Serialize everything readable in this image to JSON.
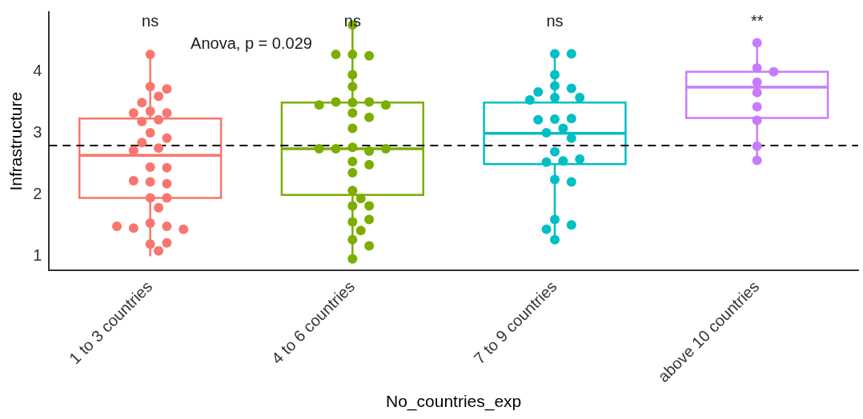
{
  "chart_data": {
    "type": "box",
    "xlabel": "No_countries_exp",
    "ylabel": "Infrastructure",
    "categories": [
      "1 to 3 countries",
      "4 to 6 countries",
      "7 to 9 countries",
      "above 10 countries"
    ],
    "colors": [
      "#f8766d",
      "#7cae00",
      "#00bfc4",
      "#c77cff"
    ],
    "boxes": [
      {
        "low": 1.0,
        "q1": 1.95,
        "median": 2.64,
        "q3": 3.24,
        "high": 4.25
      },
      {
        "low": 1.0,
        "q1": 2.0,
        "median": 2.75,
        "q3": 3.5,
        "high": 4.75
      },
      {
        "low": 1.25,
        "q1": 2.5,
        "median": 3.0,
        "q3": 3.5,
        "high": 4.25
      },
      {
        "low": 2.5,
        "q1": 3.25,
        "median": 3.75,
        "q3": 4.0,
        "high": 4.5
      }
    ],
    "series": [
      {
        "type": "scatter",
        "color": "#f8766d",
        "x": [
          "1 to 3 countries",
          "1 to 3 countries",
          "1 to 3 countries",
          "1 to 3 countries",
          "1 to 3 countries",
          "1 to 3 countries",
          "1 to 3 countries",
          "1 to 3 countries",
          "1 to 3 countries",
          "1 to 3 countries",
          "1 to 3 countries",
          "1 to 3 countries",
          "1 to 3 countries",
          "1 to 3 countries",
          "1 to 3 countries",
          "1 to 3 countries",
          "1 to 3 countries",
          "1 to 3 countries",
          "1 to 3 countries",
          "1 to 3 countries",
          "1 to 3 countries",
          "1 to 3 countries",
          "1 to 3 countries",
          "1 to 3 countries",
          "1 to 3 countries",
          "1 to 3 countries",
          "1 to 3 countries",
          "1 to 3 countries",
          "1 to 3 countries",
          "1 to 3 countries",
          "1 to 3 countries"
        ],
        "values": [
          4.28,
          3.76,
          3.72,
          3.6,
          3.5,
          3.36,
          3.33,
          3.33,
          3.22,
          3.19,
          3.01,
          2.92,
          2.85,
          2.76,
          2.72,
          2.45,
          2.44,
          2.21,
          2.18,
          2.23,
          1.95,
          1.95,
          1.79,
          1.54,
          1.49,
          1.46,
          1.44,
          1.49,
          1.2,
          1.22,
          1.09
        ]
      },
      {
        "type": "scatter",
        "color": "#7cae00",
        "x": [
          "4 to 6 countries",
          "4 to 6 countries",
          "4 to 6 countries",
          "4 to 6 countries",
          "4 to 6 countries",
          "4 to 6 countries",
          "4 to 6 countries",
          "4 to 6 countries",
          "4 to 6 countries",
          "4 to 6 countries",
          "4 to 6 countries",
          "4 to 6 countries",
          "4 to 6 countries",
          "4 to 6 countries",
          "4 to 6 countries",
          "4 to 6 countries",
          "4 to 6 countries",
          "4 to 6 countries",
          "4 to 6 countries",
          "4 to 6 countries",
          "4 to 6 countries",
          "4 to 6 countries",
          "4 to 6 countries",
          "4 to 6 countries",
          "4 to 6 countries",
          "4 to 6 countries",
          "4 to 6 countries",
          "4 to 6 countries",
          "4 to 6 countries",
          "4 to 6 countries",
          "4 to 6 countries",
          "4 to 6 countries"
        ],
        "values": [
          4.76,
          4.28,
          4.26,
          4.28,
          3.95,
          3.76,
          3.5,
          3.51,
          3.51,
          3.46,
          3.46,
          3.33,
          3.26,
          3.08,
          2.77,
          2.71,
          2.75,
          2.75,
          2.75,
          2.54,
          2.49,
          2.36,
          2.07,
          1.94,
          1.82,
          1.82,
          1.56,
          1.6,
          1.42,
          1.27,
          1.17,
          0.96
        ]
      },
      {
        "type": "scatter",
        "color": "#00bfc4",
        "x": [
          "7 to 9 countries",
          "7 to 9 countries",
          "7 to 9 countries",
          "7 to 9 countries",
          "7 to 9 countries",
          "7 to 9 countries",
          "7 to 9 countries",
          "7 to 9 countries",
          "7 to 9 countries",
          "7 to 9 countries",
          "7 to 9 countries",
          "7 to 9 countries",
          "7 to 9 countries",
          "7 to 9 countries",
          "7 to 9 countries",
          "7 to 9 countries",
          "7 to 9 countries",
          "7 to 9 countries",
          "7 to 9 countries",
          "7 to 9 countries",
          "7 to 9 countries",
          "7 to 9 countries",
          "7 to 9 countries",
          "7 to 9 countries",
          "7 to 9 countries"
        ],
        "values": [
          4.29,
          4.29,
          3.95,
          3.77,
          3.73,
          3.67,
          3.58,
          3.58,
          3.54,
          3.23,
          3.24,
          3.22,
          3.08,
          3.01,
          2.92,
          2.7,
          2.55,
          2.53,
          2.58,
          2.25,
          2.21,
          1.6,
          1.51,
          1.44,
          1.27
        ]
      },
      {
        "type": "scatter",
        "color": "#c77cff",
        "x": [
          "above 10 countries",
          "above 10 countries",
          "above 10 countries",
          "above 10 countries",
          "above 10 countries",
          "above 10 countries",
          "above 10 countries",
          "above 10 countries",
          "above 10 countries"
        ],
        "values": [
          4.47,
          4.06,
          4.0,
          3.83,
          3.66,
          3.43,
          3.21,
          2.79,
          2.56
        ]
      }
    ],
    "ref_lines": [
      {
        "axis": "y",
        "value": 2.8,
        "color": "#000000",
        "line_style": "dashed"
      }
    ],
    "annotations": [
      "ns",
      "ns",
      "ns",
      "**",
      "Anova, p = 0.029"
    ],
    "ylim": [
      0.77,
      4.97
    ],
    "yticks": [
      1,
      2,
      3,
      4
    ],
    "grid": false,
    "legend": false,
    "marker": "circle"
  }
}
